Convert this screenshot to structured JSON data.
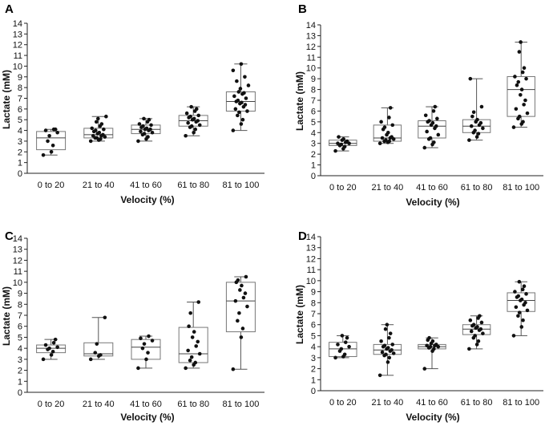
{
  "chart_data": [
    {
      "panel": "A",
      "type": "box",
      "xlabel": "Velocity (%)",
      "ylabel": "Lactate (mM)",
      "ylim": [
        0,
        14
      ],
      "yticks": [
        "0",
        "1",
        "2",
        "3",
        "4",
        "5",
        "6",
        "7",
        "8",
        "9",
        "10",
        "11",
        "12",
        "13",
        "14"
      ],
      "categories": [
        "0 to 20",
        "21 to 40",
        "41 to 60",
        "61 to 80",
        "81 to 100"
      ],
      "boxes": [
        {
          "min": 1.7,
          "q1": 2.2,
          "median": 3.3,
          "q3": 3.9,
          "max": 4.1,
          "points": [
            1.7,
            2.0,
            2.6,
            3.0,
            3.5,
            3.8,
            4.0,
            4.1,
            4.1
          ]
        },
        {
          "min": 3.0,
          "q1": 3.3,
          "median": 3.6,
          "q3": 4.2,
          "max": 5.3,
          "points": [
            3.0,
            3.1,
            3.2,
            3.3,
            3.3,
            3.4,
            3.5,
            3.5,
            3.6,
            3.7,
            3.8,
            3.9,
            4.0,
            4.1,
            4.2,
            4.4,
            4.6,
            4.8,
            5.1,
            5.3
          ]
        },
        {
          "min": 3.0,
          "q1": 3.7,
          "median": 4.1,
          "q3": 4.5,
          "max": 5.1,
          "points": [
            3.0,
            3.2,
            3.4,
            3.6,
            3.7,
            3.8,
            3.9,
            4.0,
            4.1,
            4.1,
            4.2,
            4.3,
            4.4,
            4.5,
            4.6,
            4.8,
            5.0,
            5.1
          ]
        },
        {
          "min": 3.5,
          "q1": 4.4,
          "median": 4.9,
          "q3": 5.4,
          "max": 6.2,
          "points": [
            3.5,
            3.8,
            4.1,
            4.3,
            4.4,
            4.5,
            4.7,
            4.8,
            4.9,
            5.0,
            5.1,
            5.2,
            5.3,
            5.4,
            5.6,
            5.8,
            6.0,
            6.2
          ]
        },
        {
          "min": 4.0,
          "q1": 5.8,
          "median": 6.7,
          "q3": 7.6,
          "max": 10.2,
          "points": [
            4.0,
            4.6,
            5.0,
            5.4,
            5.7,
            5.8,
            6.0,
            6.2,
            6.4,
            6.5,
            6.6,
            6.7,
            6.8,
            7.0,
            7.2,
            7.4,
            7.5,
            7.6,
            7.9,
            8.2,
            8.6,
            9.0,
            9.6,
            10.2
          ]
        }
      ]
    },
    {
      "panel": "B",
      "type": "box",
      "xlabel": "Velocity (%)",
      "ylabel": "Lactate (mM)",
      "ylim": [
        0,
        14
      ],
      "yticks": [
        "0",
        "1",
        "2",
        "3",
        "4",
        "5",
        "6",
        "7",
        "8",
        "9",
        "10",
        "11",
        "12",
        "13",
        "14"
      ],
      "categories": [
        "0 to 20",
        "21 to 40",
        "41 to 60",
        "61 to 80",
        "81 to 100"
      ],
      "boxes": [
        {
          "min": 2.3,
          "q1": 2.8,
          "median": 3.0,
          "q3": 3.3,
          "max": 3.6,
          "points": [
            2.3,
            2.5,
            2.7,
            2.8,
            2.9,
            3.0,
            3.0,
            3.1,
            3.2,
            3.3,
            3.4,
            3.6
          ]
        },
        {
          "min": 3.0,
          "q1": 3.2,
          "median": 3.5,
          "q3": 4.7,
          "max": 6.3,
          "points": [
            3.0,
            3.1,
            3.2,
            3.2,
            3.3,
            3.4,
            3.5,
            3.5,
            3.6,
            3.8,
            4.0,
            4.3,
            4.5,
            4.7,
            5.0,
            5.4,
            6.3
          ]
        },
        {
          "min": 2.6,
          "q1": 3.5,
          "median": 4.6,
          "q3": 5.1,
          "max": 6.4,
          "points": [
            2.6,
            2.9,
            3.1,
            3.4,
            3.5,
            3.8,
            4.1,
            4.4,
            4.6,
            4.7,
            4.9,
            5.0,
            5.1,
            5.3,
            5.6,
            6.0,
            6.4
          ]
        },
        {
          "min": 3.3,
          "q1": 4.0,
          "median": 4.6,
          "q3": 5.2,
          "max": 9.0,
          "points": [
            3.3,
            3.6,
            3.9,
            4.0,
            4.2,
            4.4,
            4.6,
            4.7,
            4.9,
            5.0,
            5.2,
            5.5,
            5.9,
            6.4,
            9.0
          ]
        },
        {
          "min": 4.5,
          "q1": 5.5,
          "median": 8.0,
          "q3": 9.2,
          "max": 12.4,
          "points": [
            4.5,
            4.8,
            5.0,
            5.3,
            5.5,
            5.8,
            6.2,
            6.6,
            7.0,
            7.5,
            8.0,
            8.4,
            8.7,
            9.0,
            9.2,
            9.6,
            10.0,
            11.5,
            12.4
          ]
        }
      ]
    },
    {
      "panel": "C",
      "type": "box",
      "xlabel": "Velocity (%)",
      "ylabel": "Lactate (mM)",
      "ylim": [
        0,
        14
      ],
      "yticks": [
        "0",
        "1",
        "2",
        "3",
        "4",
        "5",
        "6",
        "7",
        "8",
        "9",
        "10",
        "11",
        "12",
        "13",
        "14"
      ],
      "categories": [
        "0 to 20",
        "21 to 40",
        "41 to 60",
        "61 to 80",
        "81 to 100"
      ],
      "boxes": [
        {
          "min": 3.0,
          "q1": 3.6,
          "median": 4.0,
          "q3": 4.3,
          "max": 4.8,
          "points": [
            3.0,
            3.4,
            3.7,
            3.9,
            4.0,
            4.1,
            4.3,
            4.5,
            4.8
          ]
        },
        {
          "min": 3.0,
          "q1": 3.3,
          "median": 3.5,
          "q3": 4.5,
          "max": 6.8,
          "points": [
            3.0,
            3.3,
            3.4,
            3.6,
            4.4,
            6.8
          ]
        },
        {
          "min": 2.2,
          "q1": 3.0,
          "median": 4.1,
          "q3": 4.8,
          "max": 5.1,
          "points": [
            2.2,
            3.0,
            3.6,
            4.0,
            4.4,
            4.7,
            4.9,
            5.1
          ]
        },
        {
          "min": 2.2,
          "q1": 2.7,
          "median": 3.5,
          "q3": 5.9,
          "max": 8.2,
          "points": [
            2.2,
            2.5,
            2.7,
            2.9,
            3.2,
            3.5,
            3.8,
            4.2,
            4.6,
            5.0,
            5.5,
            6.0,
            7.2,
            8.2
          ]
        },
        {
          "min": 2.1,
          "q1": 5.5,
          "median": 8.3,
          "q3": 10.0,
          "max": 10.5,
          "points": [
            2.1,
            5.0,
            5.8,
            6.5,
            7.2,
            7.8,
            8.3,
            8.6,
            9.0,
            9.3,
            9.7,
            10.0,
            10.2,
            10.5
          ]
        }
      ]
    },
    {
      "panel": "D",
      "type": "box",
      "xlabel": "Velocity (%)",
      "ylabel": "Lactate (mM)",
      "ylim": [
        0,
        14
      ],
      "yticks": [
        "0",
        "1",
        "2",
        "3",
        "4",
        "5",
        "6",
        "7",
        "8",
        "9",
        "10",
        "11",
        "12",
        "13",
        "14"
      ],
      "categories": [
        "0 to 20",
        "21 to 40",
        "41 to 60",
        "61 to 80",
        "81 to 100"
      ],
      "boxes": [
        {
          "min": 3.0,
          "q1": 3.1,
          "median": 3.8,
          "q3": 4.4,
          "max": 5.0,
          "points": [
            3.0,
            3.1,
            3.3,
            3.6,
            3.8,
            4.0,
            4.2,
            4.4,
            4.8,
            5.0
          ]
        },
        {
          "min": 1.4,
          "q1": 3.3,
          "median": 3.7,
          "q3": 4.2,
          "max": 6.0,
          "points": [
            1.4,
            2.6,
            3.0,
            3.2,
            3.3,
            3.4,
            3.5,
            3.6,
            3.7,
            3.8,
            3.9,
            4.0,
            4.1,
            4.2,
            4.5,
            4.8,
            5.2,
            5.6,
            6.0
          ]
        },
        {
          "min": 2.0,
          "q1": 3.8,
          "median": 4.0,
          "q3": 4.2,
          "max": 4.8,
          "points": [
            2.0,
            3.6,
            3.8,
            3.9,
            4.0,
            4.0,
            4.1,
            4.1,
            4.2,
            4.3,
            4.5,
            4.6,
            4.8
          ]
        },
        {
          "min": 3.8,
          "q1": 5.1,
          "median": 5.6,
          "q3": 6.0,
          "max": 6.8,
          "points": [
            3.8,
            4.2,
            4.5,
            4.8,
            5.0,
            5.2,
            5.4,
            5.5,
            5.6,
            5.7,
            5.8,
            5.9,
            6.0,
            6.2,
            6.4,
            6.6,
            6.8
          ]
        },
        {
          "min": 5.0,
          "q1": 7.2,
          "median": 8.2,
          "q3": 8.9,
          "max": 9.9,
          "points": [
            5.0,
            5.8,
            6.4,
            6.8,
            7.1,
            7.3,
            7.6,
            7.8,
            8.0,
            8.2,
            8.3,
            8.5,
            8.6,
            8.8,
            9.0,
            9.2,
            9.5,
            9.9
          ]
        }
      ]
    }
  ]
}
